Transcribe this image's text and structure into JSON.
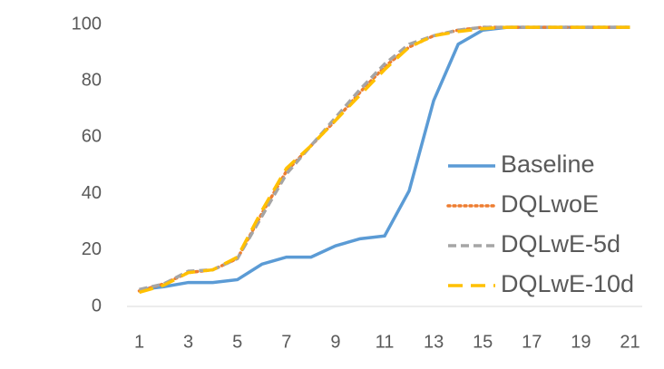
{
  "chart_data": {
    "type": "line",
    "x": [
      1,
      2,
      3,
      4,
      5,
      6,
      7,
      8,
      9,
      10,
      11,
      12,
      13,
      14,
      15,
      16,
      17,
      18,
      19,
      20,
      21
    ],
    "xlim": [
      0.5,
      21.5
    ],
    "xticks": [
      1,
      3,
      5,
      7,
      9,
      11,
      13,
      15,
      17,
      19,
      21
    ],
    "ylim": [
      0,
      100
    ],
    "yticks": [
      0,
      20,
      40,
      60,
      80,
      100
    ],
    "grid": false,
    "legend": "right",
    "series": [
      {
        "name": "Baseline",
        "color": "#5b9bd5",
        "dash": "solid",
        "values": [
          6,
          7,
          8.5,
          8.5,
          9.5,
          15,
          17.5,
          17.5,
          21.5,
          24,
          25,
          41,
          73,
          93,
          98,
          99,
          99,
          99,
          99,
          99,
          99
        ]
      },
      {
        "name": "DQLwoE",
        "color": "#ed7d31",
        "dash": "dot",
        "values": [
          5.5,
          8,
          12,
          13,
          17,
          33,
          48,
          57,
          66,
          76,
          85,
          92,
          96,
          98,
          99,
          99,
          99,
          99,
          99,
          99,
          99
        ]
      },
      {
        "name": "DQLwE-5d",
        "color": "#a5a5a5",
        "dash": "dash",
        "values": [
          6,
          8,
          12.5,
          13,
          17,
          32,
          47,
          57,
          67,
          77,
          86,
          93,
          96,
          98,
          99,
          99,
          99,
          99,
          99,
          99,
          99
        ]
      },
      {
        "name": "DQLwE-10d",
        "color": "#ffc000",
        "dash": "longdash",
        "values": [
          5,
          7.5,
          12,
          13,
          17.5,
          34,
          49,
          57,
          66,
          75,
          84,
          92,
          96,
          97.5,
          98.5,
          99,
          99,
          99,
          99,
          99,
          99
        ]
      }
    ]
  }
}
